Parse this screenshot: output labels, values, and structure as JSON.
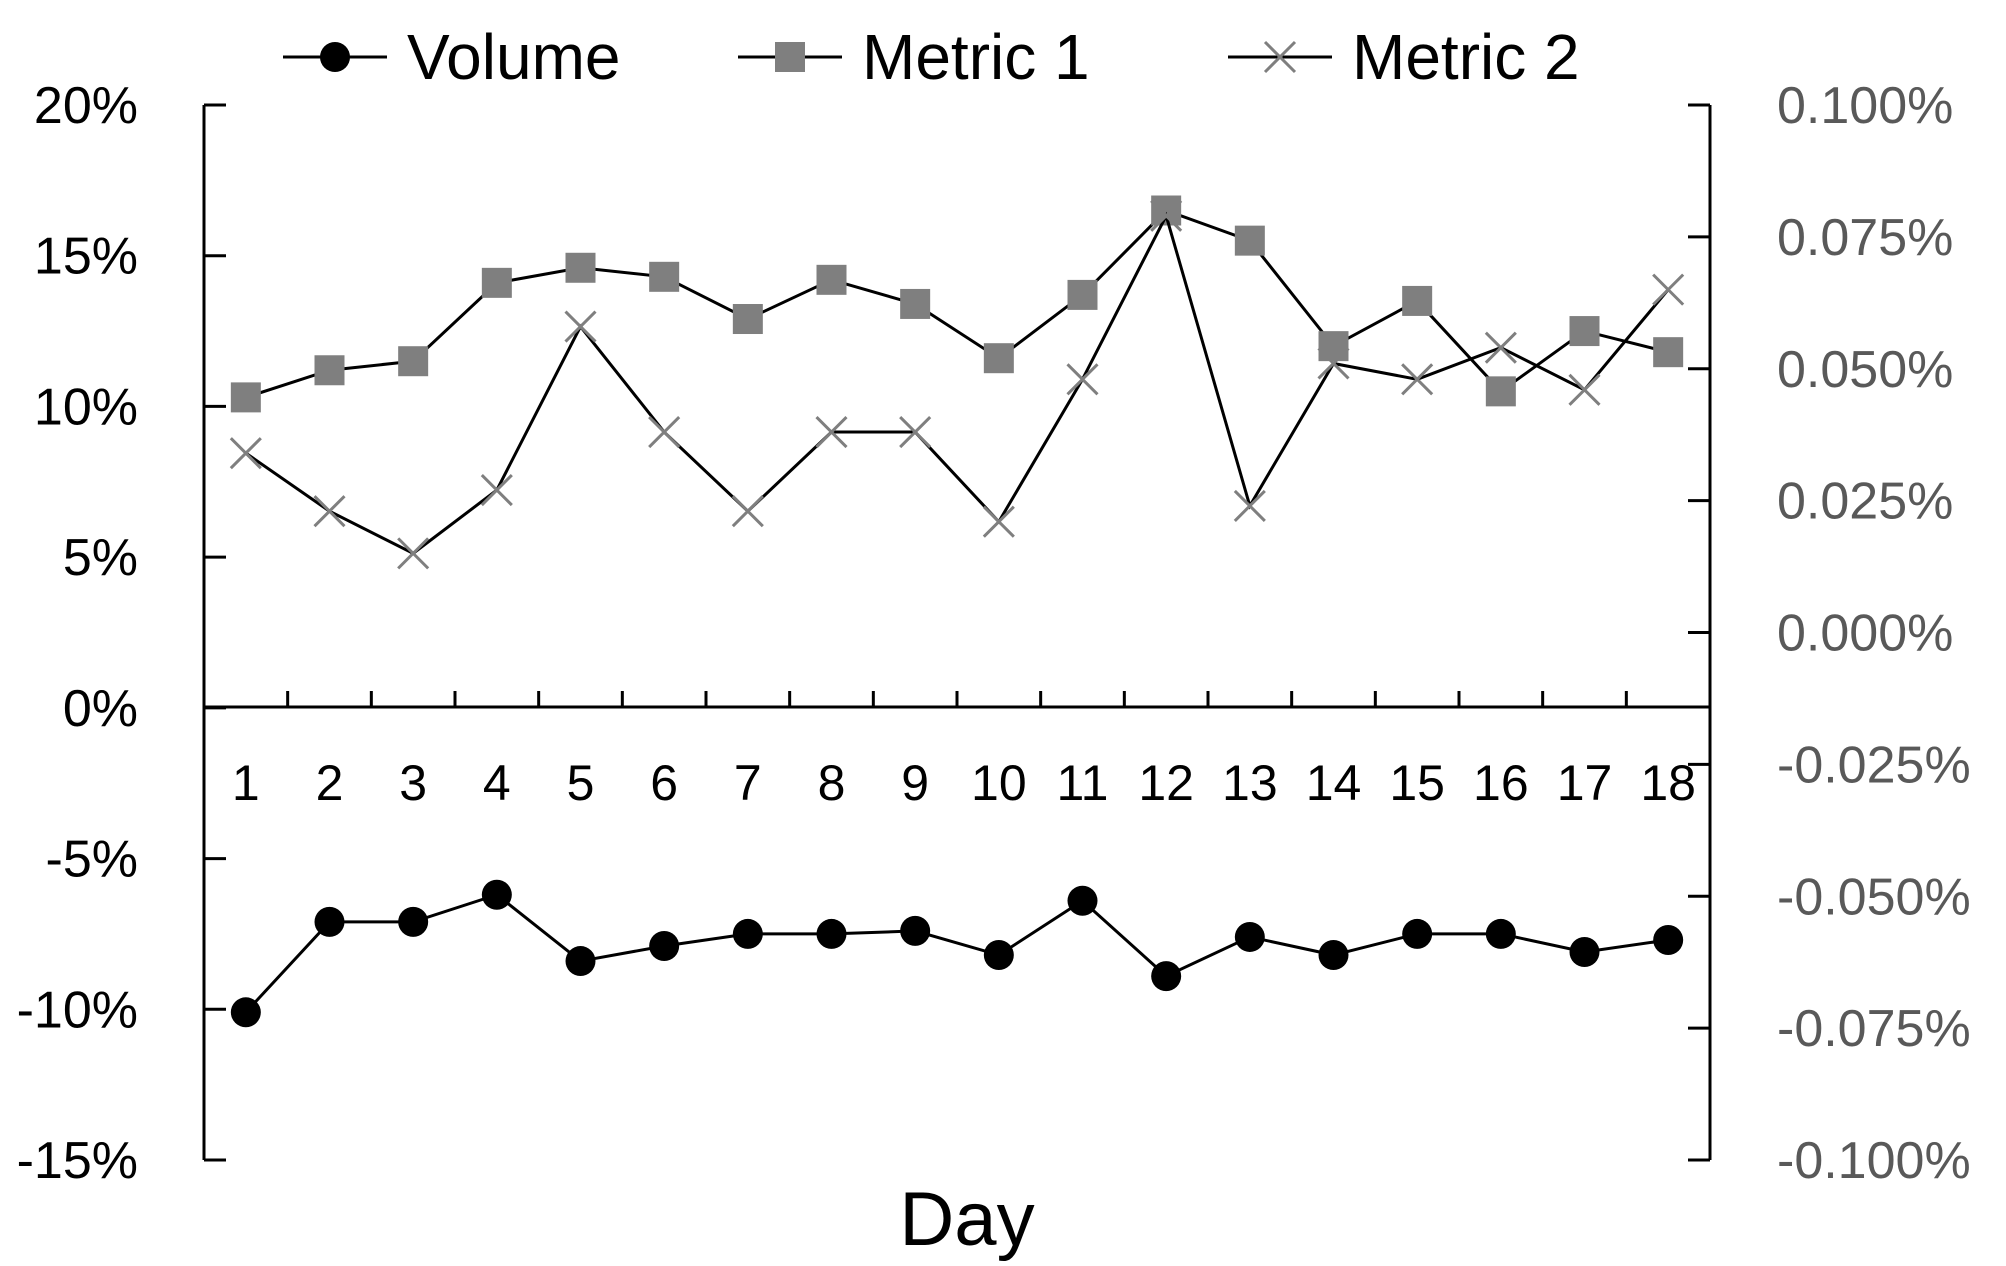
{
  "chart_data": {
    "type": "line",
    "title": "",
    "xlabel": "Day",
    "ylabel": "",
    "ylabel_right": "",
    "categories": [
      "1",
      "2",
      "3",
      "4",
      "5",
      "6",
      "7",
      "8",
      "9",
      "10",
      "11",
      "12",
      "13",
      "14",
      "15",
      "16",
      "17",
      "18"
    ],
    "ylim": [
      -0.15,
      0.2
    ],
    "y2lim": [
      -0.001,
      0.001
    ],
    "y_ticks": [
      -0.15,
      -0.1,
      -0.05,
      0,
      0.05,
      0.1,
      0.15,
      0.2
    ],
    "y_tick_labels": [
      "-15%",
      "-10%",
      "-5%",
      "0%",
      "5%",
      "10%",
      "15%",
      "20%"
    ],
    "y2_ticks": [
      -0.001,
      -0.00075,
      -0.0005,
      -0.00025,
      0,
      0.00025,
      0.0005,
      0.00075,
      0.001
    ],
    "y2_tick_labels": [
      "-0.100%",
      "-0.075%",
      "-0.050%",
      "-0.025%",
      "0.000%",
      "0.025%",
      "0.050%",
      "0.075%",
      "0.100%"
    ],
    "grid": false,
    "legend_position": "top",
    "series": [
      {
        "name": "Volume",
        "axis": "left",
        "marker": "circle",
        "color": "#000000",
        "values": [
          -0.101,
          -0.071,
          -0.071,
          -0.062,
          -0.084,
          -0.079,
          -0.075,
          -0.075,
          -0.074,
          -0.082,
          -0.064,
          -0.089,
          -0.076,
          -0.082,
          -0.075,
          -0.075,
          -0.081,
          -0.077
        ]
      },
      {
        "name": "Metric 1",
        "axis": "left",
        "marker": "square",
        "color": "#7f7f7f",
        "values": [
          0.103,
          0.112,
          0.115,
          0.141,
          0.146,
          0.143,
          0.129,
          0.142,
          0.134,
          0.116,
          0.137,
          0.165,
          0.155,
          0.12,
          0.135,
          0.105,
          0.125,
          0.118
        ]
      },
      {
        "name": "Metric 2",
        "axis": "right",
        "marker": "x",
        "color": "#7f7f7f",
        "values": [
          0.00034,
          0.00023,
          0.00015,
          0.00027,
          0.00058,
          0.00038,
          0.00023,
          0.00038,
          0.00038,
          0.00021,
          0.00048,
          0.00079,
          0.00024,
          0.00051,
          0.00048,
          0.00054,
          0.00046,
          0.00065
        ]
      }
    ]
  }
}
